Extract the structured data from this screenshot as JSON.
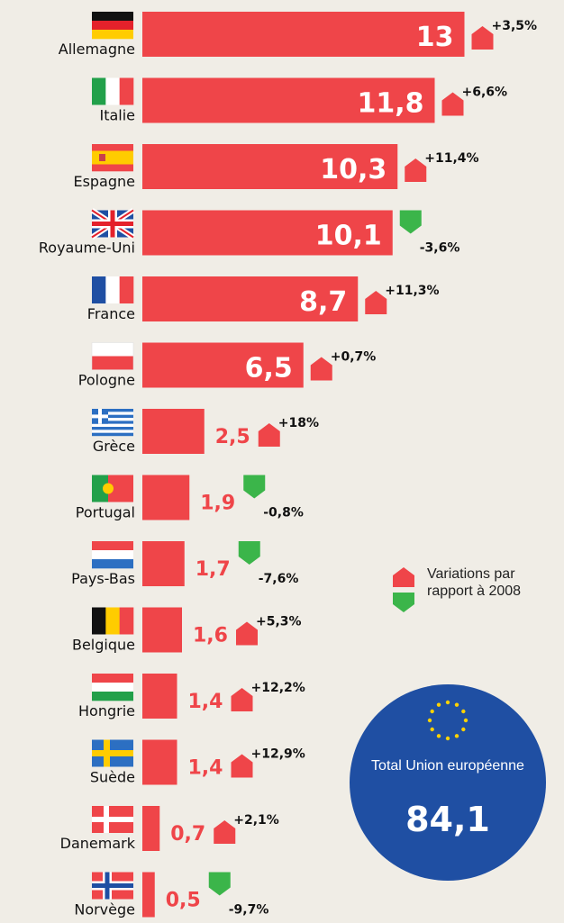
{
  "colors": {
    "bar": "#ef4549",
    "increase": "#ef4549",
    "decrease": "#3bb54a",
    "value_outside": "#ef4549",
    "value_inside": "#ffffff",
    "circle": "#1f4fa3",
    "star": "#ffd200"
  },
  "chart_data": {
    "type": "bar",
    "orientation": "horizontal",
    "categories": [
      "Allemagne",
      "Italie",
      "Espagne",
      "Royaume-Uni",
      "France",
      "Pologne",
      "Grèce",
      "Portugal",
      "Pays-Bas",
      "Belgique",
      "Hongrie",
      "Suède",
      "Danemark",
      "Norvège"
    ],
    "values": [
      13,
      11.8,
      10.3,
      10.1,
      8.7,
      6.5,
      2.5,
      1.9,
      1.7,
      1.6,
      1.4,
      1.4,
      0.7,
      0.5
    ],
    "value_labels": [
      "13",
      "11,8",
      "10,3",
      "10,1",
      "8,7",
      "6,5",
      "2,5",
      "1,9",
      "1,7",
      "1,6",
      "1,4",
      "1,4",
      "0,7",
      "0,5"
    ],
    "variations": [
      3.5,
      6.6,
      11.4,
      -3.6,
      11.3,
      0.7,
      18,
      -0.8,
      -7.6,
      5.3,
      12.2,
      12.9,
      2.1,
      -9.7
    ],
    "variation_labels": [
      "+3,5%",
      "+6,6%",
      "+11,4%",
      "-3,6%",
      "+11,3%",
      "+0,7%",
      "+18%",
      "-0,8%",
      "-7,6%",
      "+5,3%",
      "+12,2%",
      "+12,9%",
      "+2,1%",
      "-9,7%"
    ],
    "flags": [
      "germany-flag",
      "italy-flag",
      "spain-flag",
      "uk-flag",
      "france-flag",
      "poland-flag",
      "greece-flag",
      "portugal-flag",
      "netherlands-flag",
      "belgium-flag",
      "hungary-flag",
      "sweden-flag",
      "denmark-flag",
      "norway-flag"
    ]
  },
  "legend": {
    "increase_label": "Variations par rapport à 2008"
  },
  "total": {
    "label": "Total Union européenne",
    "value": "84,1"
  }
}
